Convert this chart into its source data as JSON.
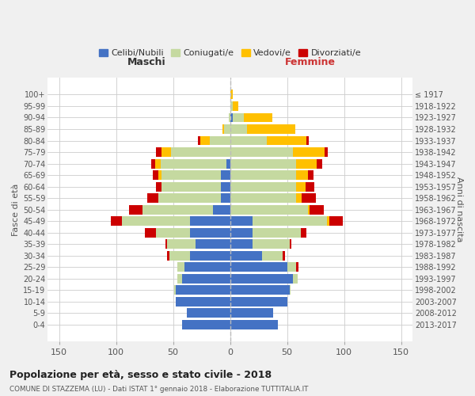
{
  "age_groups": [
    "0-4",
    "5-9",
    "10-14",
    "15-19",
    "20-24",
    "25-29",
    "30-34",
    "35-39",
    "40-44",
    "45-49",
    "50-54",
    "55-59",
    "60-64",
    "65-69",
    "70-74",
    "75-79",
    "80-84",
    "85-89",
    "90-94",
    "95-99",
    "100+"
  ],
  "birth_years": [
    "2013-2017",
    "2008-2012",
    "2003-2007",
    "1998-2002",
    "1993-1997",
    "1988-1992",
    "1983-1987",
    "1978-1982",
    "1973-1977",
    "1968-1972",
    "1963-1967",
    "1958-1962",
    "1953-1957",
    "1948-1952",
    "1943-1947",
    "1938-1942",
    "1933-1937",
    "1928-1932",
    "1923-1927",
    "1918-1922",
    "≤ 1917"
  ],
  "males": {
    "celibi": [
      42,
      38,
      48,
      48,
      42,
      40,
      35,
      30,
      35,
      35,
      15,
      8,
      8,
      8,
      3,
      0,
      0,
      0,
      0,
      0,
      0
    ],
    "coniugati": [
      0,
      0,
      0,
      1,
      4,
      6,
      18,
      25,
      30,
      60,
      62,
      55,
      52,
      52,
      58,
      52,
      18,
      5,
      1,
      0,
      0
    ],
    "vedovi": [
      0,
      0,
      0,
      0,
      0,
      0,
      0,
      0,
      0,
      0,
      0,
      0,
      0,
      3,
      5,
      8,
      8,
      2,
      0,
      0,
      0
    ],
    "divorziati": [
      0,
      0,
      0,
      0,
      0,
      0,
      2,
      2,
      10,
      10,
      12,
      10,
      5,
      5,
      3,
      5,
      2,
      0,
      0,
      0,
      0
    ]
  },
  "females": {
    "nubili": [
      42,
      38,
      50,
      52,
      55,
      50,
      28,
      20,
      20,
      20,
      0,
      0,
      0,
      0,
      0,
      0,
      0,
      0,
      2,
      0,
      0
    ],
    "coniugate": [
      0,
      0,
      0,
      1,
      4,
      8,
      18,
      32,
      42,
      65,
      68,
      58,
      58,
      58,
      58,
      55,
      32,
      15,
      10,
      2,
      0
    ],
    "vedove": [
      0,
      0,
      0,
      0,
      0,
      0,
      0,
      0,
      0,
      2,
      2,
      5,
      8,
      10,
      18,
      28,
      35,
      42,
      25,
      5,
      2
    ],
    "divorziate": [
      0,
      0,
      0,
      0,
      0,
      2,
      2,
      2,
      5,
      12,
      12,
      12,
      8,
      5,
      5,
      3,
      2,
      0,
      0,
      0,
      0
    ]
  },
  "colors": {
    "celibi": "#4472c4",
    "coniugati": "#c5d9a0",
    "vedovi": "#ffc000",
    "divorziati": "#cc0000"
  },
  "title": "Popolazione per età, sesso e stato civile - 2018",
  "subtitle": "COMUNE DI STAZZEMA (LU) - Dati ISTAT 1° gennaio 2018 - Elaborazione TUTTITALIA.IT",
  "ylabel_left": "Fasce di età",
  "ylabel_right": "Anni di nascita",
  "xlabel_left": "Maschi",
  "xlabel_right": "Femmine",
  "xlim": 160,
  "legend_labels": [
    "Celibi/Nubili",
    "Coniugati/e",
    "Vedovi/e",
    "Divorziati/e"
  ],
  "bg_color": "#f0f0f0",
  "plot_bg": "#ffffff"
}
